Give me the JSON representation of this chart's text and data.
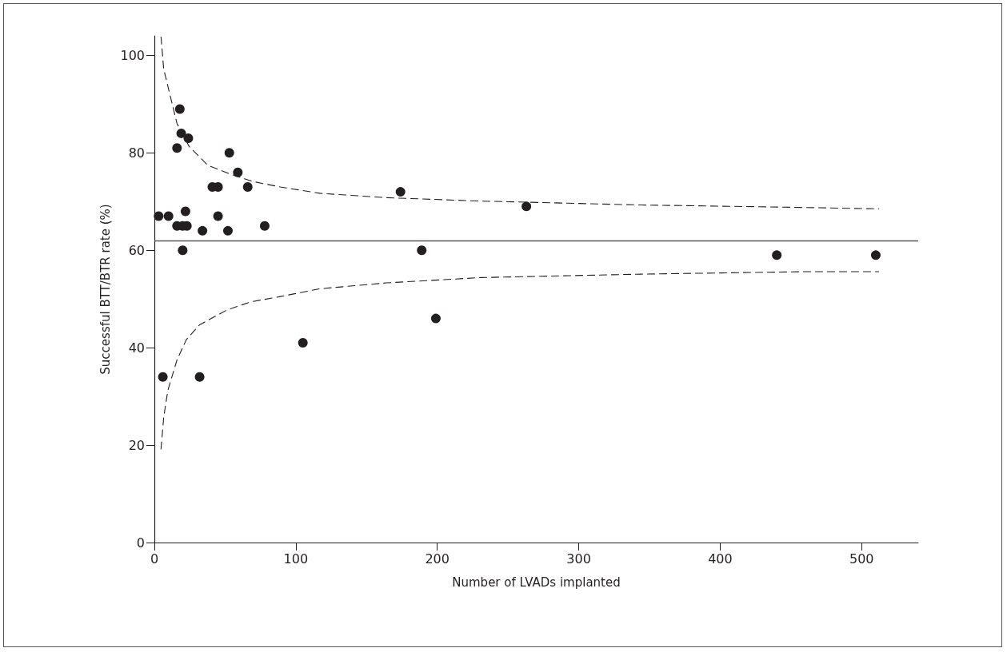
{
  "chart_data": {
    "type": "scatter",
    "xlabel": "Number of LVADs implanted",
    "ylabel": "Successful BTT/BTR rate (%)",
    "xlim": [
      0,
      540
    ],
    "ylim": [
      0,
      104
    ],
    "xticks": [
      0,
      100,
      200,
      300,
      400,
      500
    ],
    "yticks": [
      0,
      20,
      40,
      60,
      80,
      100
    ],
    "grid": false,
    "marker": "circle",
    "series": [
      {
        "color": "#231f20",
        "x": [
          18,
          19,
          24,
          16,
          53,
          59,
          41,
          45,
          66,
          174,
          3,
          10,
          22,
          45,
          16,
          20,
          23,
          34,
          52,
          78,
          20,
          189,
          199,
          6,
          32,
          105,
          263,
          440,
          510
        ],
        "values": [
          89,
          84,
          83,
          81,
          80,
          76,
          73,
          73,
          73,
          72,
          67,
          67,
          68,
          67,
          65,
          65,
          65,
          64,
          64,
          65,
          60,
          60,
          46,
          34,
          34,
          41,
          69,
          59,
          59
        ]
      },
      {
        "type": "line",
        "color": "#231f20",
        "line_style": "dashed",
        "marker": "none",
        "x": [
          4.7,
          6.6,
          16,
          24.6,
          38,
          55,
          70,
          89,
          117,
          164,
          231,
          344,
          458,
          512
        ],
        "values": [
          103.8,
          97.2,
          86,
          81.3,
          77.4,
          75.5,
          74.1,
          73,
          71.7,
          70.8,
          70.1,
          69.3,
          68.8,
          68.5
        ]
      },
      {
        "type": "line",
        "color": "#231f20",
        "line_style": "dashed",
        "marker": "none",
        "x": [
          4.7,
          6.6,
          9.5,
          16,
          22.7,
          32,
          51,
          68,
          89,
          117,
          164,
          231,
          344,
          458,
          512
        ],
        "values": [
          19.2,
          25.7,
          31.2,
          37.5,
          41.7,
          44.7,
          47.7,
          49.4,
          50.5,
          52.1,
          53.3,
          54.4,
          55.1,
          55.6,
          55.6
        ]
      }
    ],
    "ref_lines": [
      {
        "axis": "y",
        "value": 62,
        "color": "#595959",
        "line_style": "solid"
      }
    ]
  }
}
